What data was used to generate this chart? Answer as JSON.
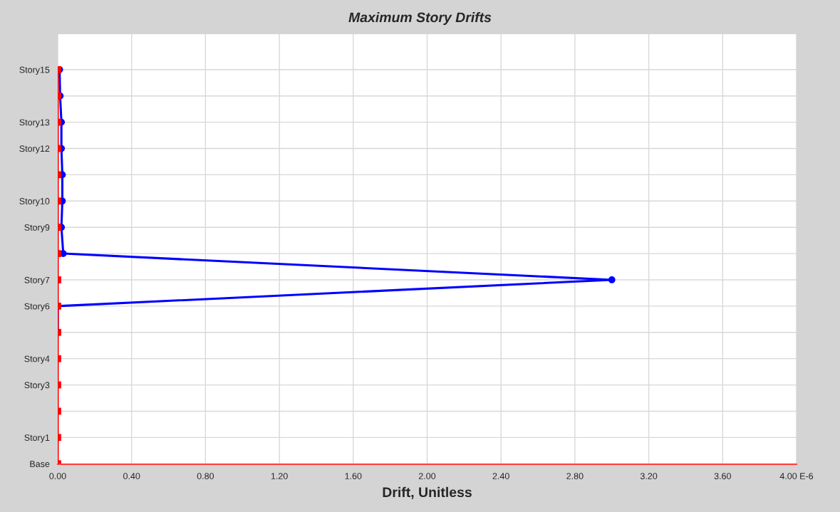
{
  "chart_data": {
    "type": "line",
    "orientation": "horizontal",
    "title": "Maximum Story Drifts",
    "xlabel": "Drift, Unitless",
    "categories": [
      "Story15",
      null,
      "Story13",
      "Story12",
      null,
      "Story10",
      "Story9",
      null,
      "Story7",
      "Story6",
      null,
      "Story4",
      "Story3",
      null,
      "Story1",
      "Base"
    ],
    "series": [
      {
        "color": "#0000ff",
        "marker": "circle",
        "values": [
          0.01,
          0.013,
          0.02,
          0.02,
          0.025,
          0.025,
          0.02,
          0.03,
          3.0,
          0,
          0,
          null,
          null,
          null,
          null,
          null
        ]
      },
      {
        "color": "#ff0000",
        "marker": "square",
        "values": [
          0,
          0,
          0,
          0,
          0,
          0,
          0,
          0,
          0,
          0,
          0,
          0,
          0,
          0,
          0,
          0
        ]
      }
    ],
    "xlim": [
      0,
      4
    ],
    "xticks": [
      {
        "value": 0,
        "label": "0.00"
      },
      {
        "value": 0.4,
        "label": "0.40"
      },
      {
        "value": 0.8,
        "label": "0.80"
      },
      {
        "value": 1.2,
        "label": "1.20"
      },
      {
        "value": 1.6,
        "label": "1.60"
      },
      {
        "value": 2.0,
        "label": "2.00"
      },
      {
        "value": 2.4,
        "label": "2.40"
      },
      {
        "value": 2.8,
        "label": "2.80"
      },
      {
        "value": 3.2,
        "label": "3.20"
      },
      {
        "value": 3.6,
        "label": "3.60"
      },
      {
        "value": 4.0,
        "label": "4.00 E-6"
      }
    ],
    "grid": true,
    "legend": false
  }
}
